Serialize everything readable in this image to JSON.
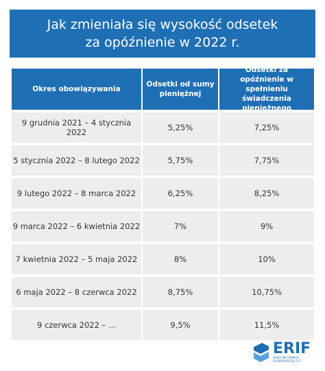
{
  "header": {
    "title": [
      "Jak zmieniała się wysokość odsetek",
      "za opóźnienie w 2022 r."
    ]
  },
  "table": {
    "columns": [
      "Okres obowiązywania",
      "Odsetki od sumy pieniężnej",
      "Odsetki za opóźnienie w spełnieniu świadczenia pieniężnego"
    ],
    "rows": [
      [
        "9 grudnia 2021 – 4 stycznia 2022",
        "5,25%",
        "7,25%"
      ],
      [
        "5 stycznia 2022 – 8 lutego 2022",
        "5,75%",
        "7,75%"
      ],
      [
        "9 lutego 2022 – 8 marca 2022",
        "6,25%",
        "8,25%"
      ],
      [
        "9 marca 2022 – 6 kwietnia 2022",
        "7%",
        "9%"
      ],
      [
        "7 kwietnia 2022 – 5 maja 2022",
        "8%",
        "10%"
      ],
      [
        "6 maja 2022 – 8 czerwca 2022",
        "8,75%",
        "10,75%"
      ],
      [
        "9 czerwca 2022 – ...",
        "9,5%",
        "11,5%"
      ]
    ]
  },
  "logo": {
    "name": "ERIF",
    "subtitle": "BIURO INFORMACJI GOSPODARCZEJ S.A."
  }
}
